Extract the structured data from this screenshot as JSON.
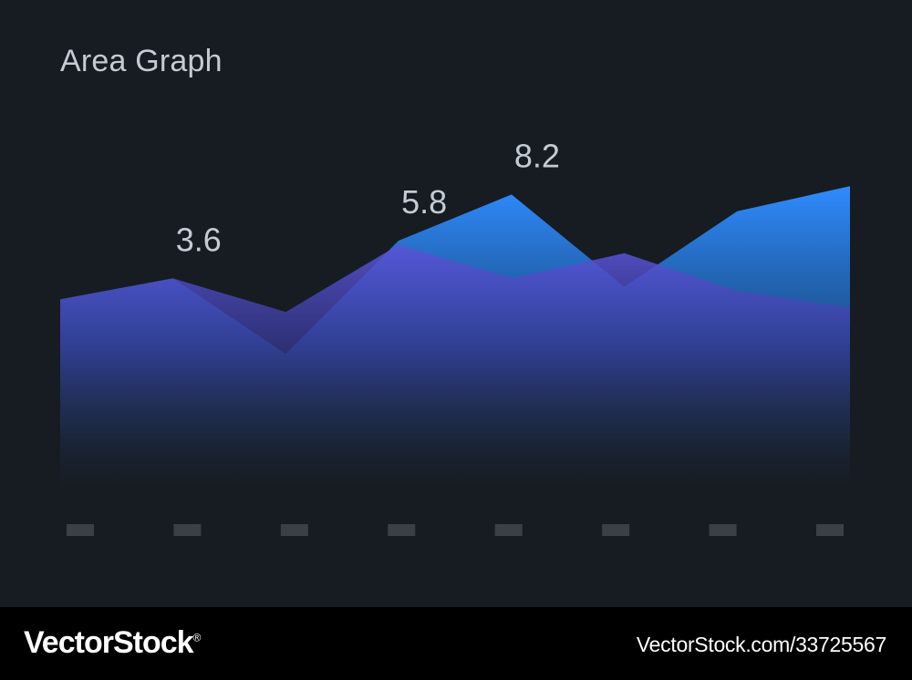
{
  "chart_data": {
    "type": "area",
    "title": "Area Graph",
    "categories": [
      "",
      "",
      "",
      "",
      "",
      "",
      "",
      ""
    ],
    "ylim": [
      0,
      10
    ],
    "series": [
      {
        "values": [
          4.6,
          5.1,
          3.3,
          6.0,
          7.1,
          4.9,
          6.7,
          7.3
        ],
        "color": "#2f8cff"
      },
      {
        "values": [
          4.6,
          5.1,
          4.3,
          5.9,
          5.1,
          5.7,
          4.8,
          4.4
        ],
        "color": "#5a53d6"
      }
    ],
    "data_labels": [
      "3.6",
      "5.8",
      "8.2"
    ],
    "grid": false,
    "legend": "none"
  },
  "colors": {
    "background": "#161c21",
    "series_blue": "#2f8cff",
    "series_purple": "#5a53d6",
    "tick_marker": "#3a4044",
    "label_text": "#c4cbd2"
  },
  "footer": {
    "brand": "VectorStock",
    "registered": "®",
    "image_id": "VectorStock.com/33725567"
  }
}
